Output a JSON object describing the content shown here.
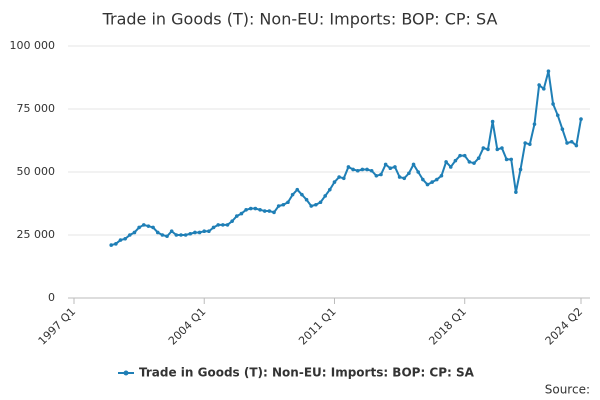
{
  "chart_data": {
    "type": "line",
    "title": "Trade in Goods (T): Non-EU: Imports: BOP: CP: SA",
    "source_label": "Source:",
    "categories": [
      "1997 Q1",
      null,
      null,
      null,
      null,
      null,
      null,
      null,
      null,
      null,
      null,
      null,
      null,
      null,
      null,
      null,
      null,
      null,
      null,
      null,
      null,
      null,
      null,
      null,
      null,
      null,
      null,
      null,
      "2004 Q1",
      null,
      null,
      null,
      null,
      null,
      null,
      null,
      null,
      null,
      null,
      null,
      null,
      null,
      null,
      null,
      null,
      null,
      null,
      null,
      null,
      null,
      null,
      null,
      null,
      null,
      null,
      null,
      "2011 Q1",
      null,
      null,
      null,
      null,
      null,
      null,
      null,
      null,
      null,
      null,
      null,
      null,
      null,
      null,
      null,
      null,
      null,
      null,
      null,
      null,
      null,
      null,
      null,
      null,
      null,
      null,
      null,
      "2018 Q1",
      null,
      null,
      null,
      null,
      null,
      null,
      null,
      null,
      null,
      null,
      null,
      null,
      null,
      null,
      null,
      null,
      null,
      null,
      null,
      null,
      null,
      null,
      null,
      null,
      "2024 Q2"
    ],
    "series": [
      {
        "name": "Trade in Goods (T): Non-EU: Imports: BOP: CP: SA",
        "color": "#1f7fb6",
        "values": [
          null,
          null,
          null,
          null,
          null,
          null,
          null,
          null,
          21000,
          21500,
          23000,
          23500,
          25000,
          26000,
          28000,
          29000,
          28500,
          28000,
          26000,
          25000,
          24500,
          26500,
          25000,
          25000,
          25000,
          25500,
          26000,
          26000,
          26500,
          26500,
          28000,
          29000,
          29000,
          29000,
          30500,
          32500,
          33500,
          35000,
          35500,
          35500,
          35000,
          34500,
          34500,
          34000,
          36500,
          37000,
          38000,
          41000,
          43000,
          41000,
          39000,
          36500,
          37000,
          38000,
          40500,
          43000,
          46000,
          48000,
          47500,
          52000,
          51000,
          50500,
          51000,
          51000,
          50500,
          48500,
          49000,
          53000,
          51500,
          52000,
          48000,
          47500,
          49500,
          53000,
          50000,
          47000,
          45000,
          46000,
          47000,
          48500,
          54000,
          52000,
          54500,
          56500,
          56500,
          54000,
          53500,
          55500,
          59500,
          59000,
          70000,
          59000,
          59500,
          55000,
          55000,
          42000,
          51000,
          61500,
          61000,
          69000,
          84500,
          83000,
          90000,
          77000,
          72500,
          67000,
          61500,
          62000,
          60500,
          71000
        ]
      }
    ],
    "ylim": [
      0,
      100000
    ],
    "yticks": [
      0,
      {
        "value": 25000,
        "label": "25 000"
      },
      {
        "value": 50000,
        "label": "50 000"
      },
      {
        "value": 75000,
        "label": "75 000"
      },
      {
        "value": 100000,
        "label": "100 000"
      }
    ],
    "grid": true
  }
}
